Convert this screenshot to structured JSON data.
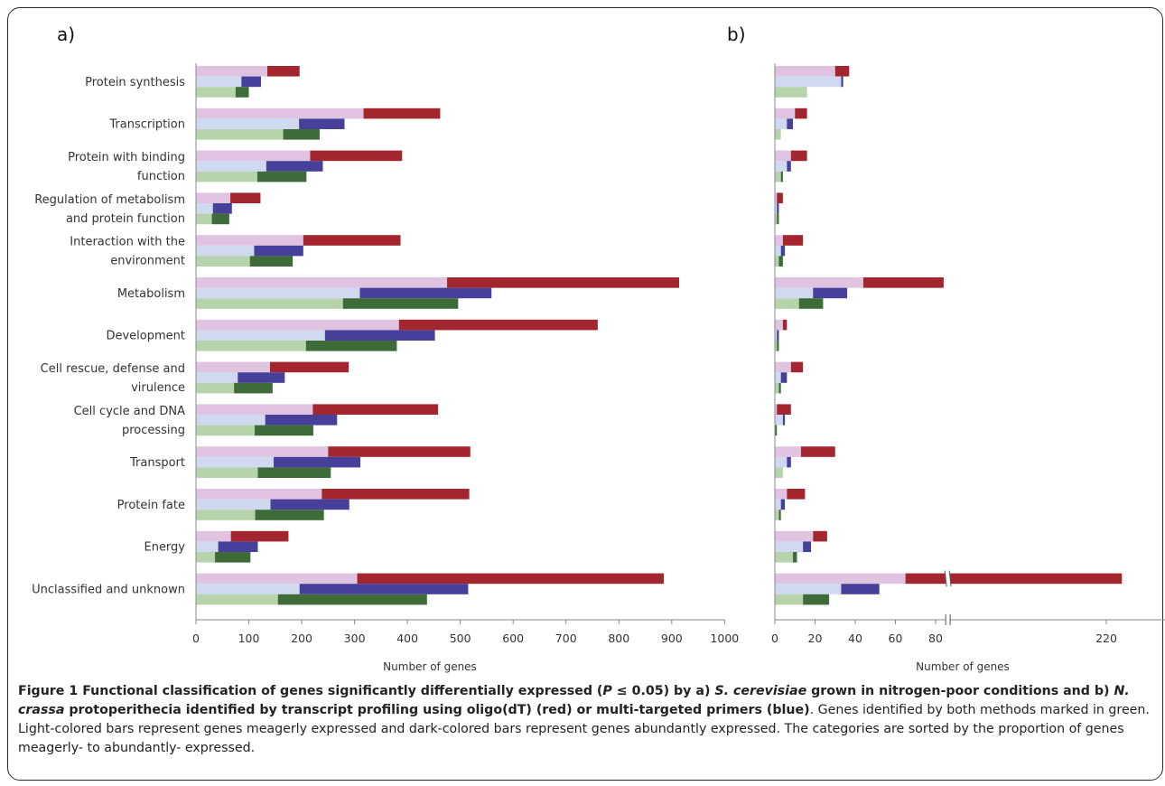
{
  "panel_labels": [
    "a)",
    "b)"
  ],
  "chart_data": [
    {
      "type": "bar",
      "orientation": "horizontal",
      "panel": "a)",
      "categories": [
        "Protein synthesis",
        "Transcription",
        "Protein with binding function",
        "Regulation of metabolism and protein function",
        "Interaction with the environment",
        "Metabolism",
        "Development",
        "Cell rescue, defense and virulence",
        "Cell cycle and DNA processing",
        "Transport",
        "Protein fate",
        "Energy",
        "Unclassified and unknown"
      ],
      "category_lines": [
        [
          "Protein synthesis"
        ],
        [
          "Transcription"
        ],
        [
          "Protein with binding",
          "function"
        ],
        [
          "Regulation of metabolism",
          "and protein function"
        ],
        [
          "Interaction with the",
          "environment"
        ],
        [
          "Metabolism"
        ],
        [
          "Development"
        ],
        [
          "Cell rescue, defense and",
          "virulence"
        ],
        [
          "Cell cycle and DNA",
          "processing"
        ],
        [
          "Transport"
        ],
        [
          "Protein fate"
        ],
        [
          "Energy"
        ],
        [
          "Unclassified and unknown"
        ]
      ],
      "series": [
        {
          "method": "oligo(dT)",
          "light": [
            135,
            317,
            216,
            65,
            203,
            475,
            384,
            140,
            221,
            250,
            238,
            66,
            305
          ],
          "total": [
            196,
            462,
            390,
            122,
            387,
            914,
            760,
            289,
            458,
            519,
            517,
            175,
            885
          ]
        },
        {
          "method": "multi-targeted",
          "light": [
            86,
            195,
            133,
            32,
            110,
            310,
            244,
            79,
            131,
            147,
            141,
            42,
            196
          ],
          "total": [
            123,
            281,
            240,
            68,
            203,
            559,
            452,
            168,
            267,
            311,
            290,
            117,
            515
          ]
        },
        {
          "method": "both",
          "light": [
            75,
            165,
            116,
            30,
            102,
            278,
            208,
            72,
            111,
            117,
            112,
            36,
            155
          ],
          "total": [
            100,
            234,
            209,
            63,
            183,
            496,
            380,
            145,
            222,
            255,
            242,
            103,
            437
          ]
        }
      ],
      "xlabel": "Number of genes",
      "xlim": [
        0,
        1000
      ],
      "xticks": [
        0,
        100,
        200,
        300,
        400,
        500,
        600,
        700,
        800,
        900,
        1000
      ]
    },
    {
      "type": "bar",
      "orientation": "horizontal",
      "panel": "b)",
      "categories": [
        "Protein synthesis",
        "Transcription",
        "Protein with binding function",
        "Regulation of metabolism and protein function",
        "Interaction with the environment",
        "Metabolism",
        "Development",
        "Cell rescue, defense and virulence",
        "Cell cycle and DNA processing",
        "Transport",
        "Protein fate",
        "Energy",
        "Unclassified and unknown"
      ],
      "series": [
        {
          "method": "oligo(dT)",
          "light": [
            30,
            10,
            8,
            1,
            4,
            44,
            4,
            8,
            1,
            13,
            6,
            19,
            65
          ],
          "total": [
            37,
            16,
            16,
            4,
            14,
            84,
            6,
            14,
            8,
            30,
            15,
            26,
            221
          ]
        },
        {
          "method": "multi-targeted",
          "light": [
            33,
            6,
            6,
            1,
            3,
            19,
            1,
            3,
            4,
            6,
            3,
            14,
            33
          ],
          "total": [
            34,
            9,
            8,
            2,
            5,
            36,
            2,
            6,
            5,
            8,
            5,
            18,
            52
          ]
        },
        {
          "method": "both",
          "light": [
            16,
            3,
            3,
            1,
            2,
            12,
            1,
            2,
            0,
            4,
            2,
            9,
            14
          ],
          "total": [
            16,
            3,
            4,
            2,
            4,
            24,
            2,
            3,
            1,
            4,
            3,
            11,
            27
          ]
        }
      ],
      "xlabel": "Number of genes",
      "axis_break": {
        "after": 85,
        "resume": 210
      },
      "xlim": [
        0,
        230
      ],
      "xticks": [
        0,
        20,
        40,
        60,
        80,
        220
      ]
    }
  ],
  "colors": {
    "oligo_light": "#dfc3e0",
    "oligo_dark": "#a3262e",
    "multi_light": "#cfd9f0",
    "multi_dark": "#47409a",
    "both_light": "#b6d3ac",
    "both_dark": "#3d6c39",
    "axis": "#888888",
    "text": "#333333"
  },
  "caption": {
    "figure_label": "Figure 1",
    "bold_1": " Functional classification of genes significantly differentially expressed (",
    "p_symbol": "P",
    "bold_2": " ≤ 0.05) by a) ",
    "species_1": "S. cerevisiae",
    "bold_3": " grown in nitrogen-poor conditions and b) ",
    "species_2": "N. crassa",
    "bold_4": " protoperithecia identified by transcript profiling using oligo(dT) (red) or multi-targeted primers (blue)",
    "end_dot": ".",
    "body": " Genes identified by both methods marked in green. Light-colored bars represent genes meagerly expressed and dark-colored bars represent genes abundantly expressed. The categories are sorted by the proportion of genes meagerly- to abundantly- expressed."
  }
}
